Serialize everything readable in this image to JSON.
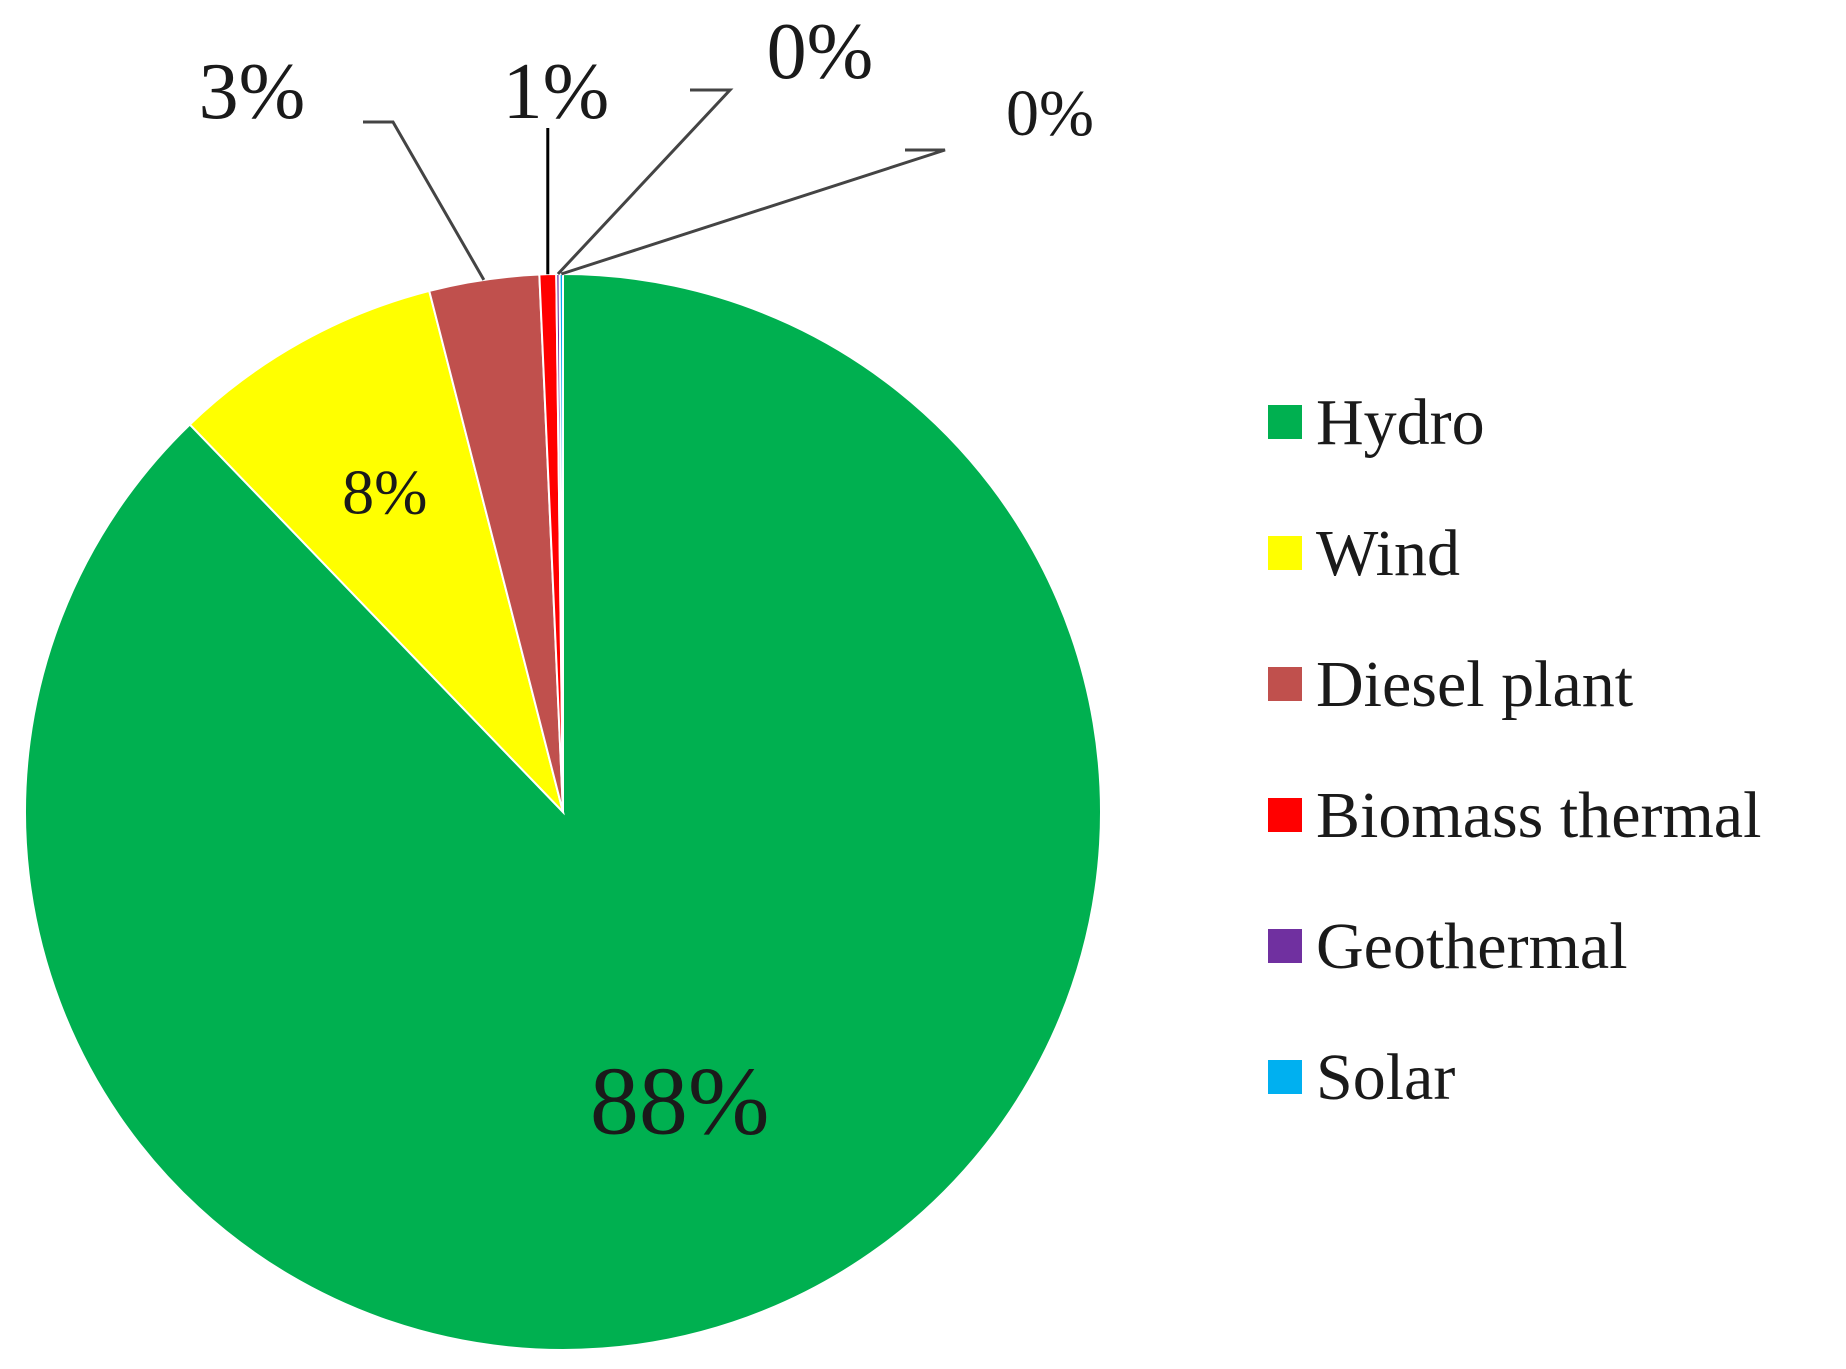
{
  "chart_data": {
    "type": "pie",
    "title": "",
    "legend_position": "right",
    "series": [
      {
        "name": "",
        "categories": [
          "Hydro",
          "Wind",
          "Diesel plant",
          "Biomass thermal",
          "Geothermal",
          "Solar"
        ],
        "values": [
          87.8,
          8.2,
          3.3,
          0.5,
          0.1,
          0.1
        ],
        "data_labels": [
          "88%",
          "8%",
          "3%",
          "1%",
          "0%",
          "0%"
        ]
      }
    ],
    "colors": [
      "#00b050",
      "#ffff00",
      "#c0504d",
      "#ff0000",
      "#7030a0",
      "#00b0f0"
    ]
  }
}
